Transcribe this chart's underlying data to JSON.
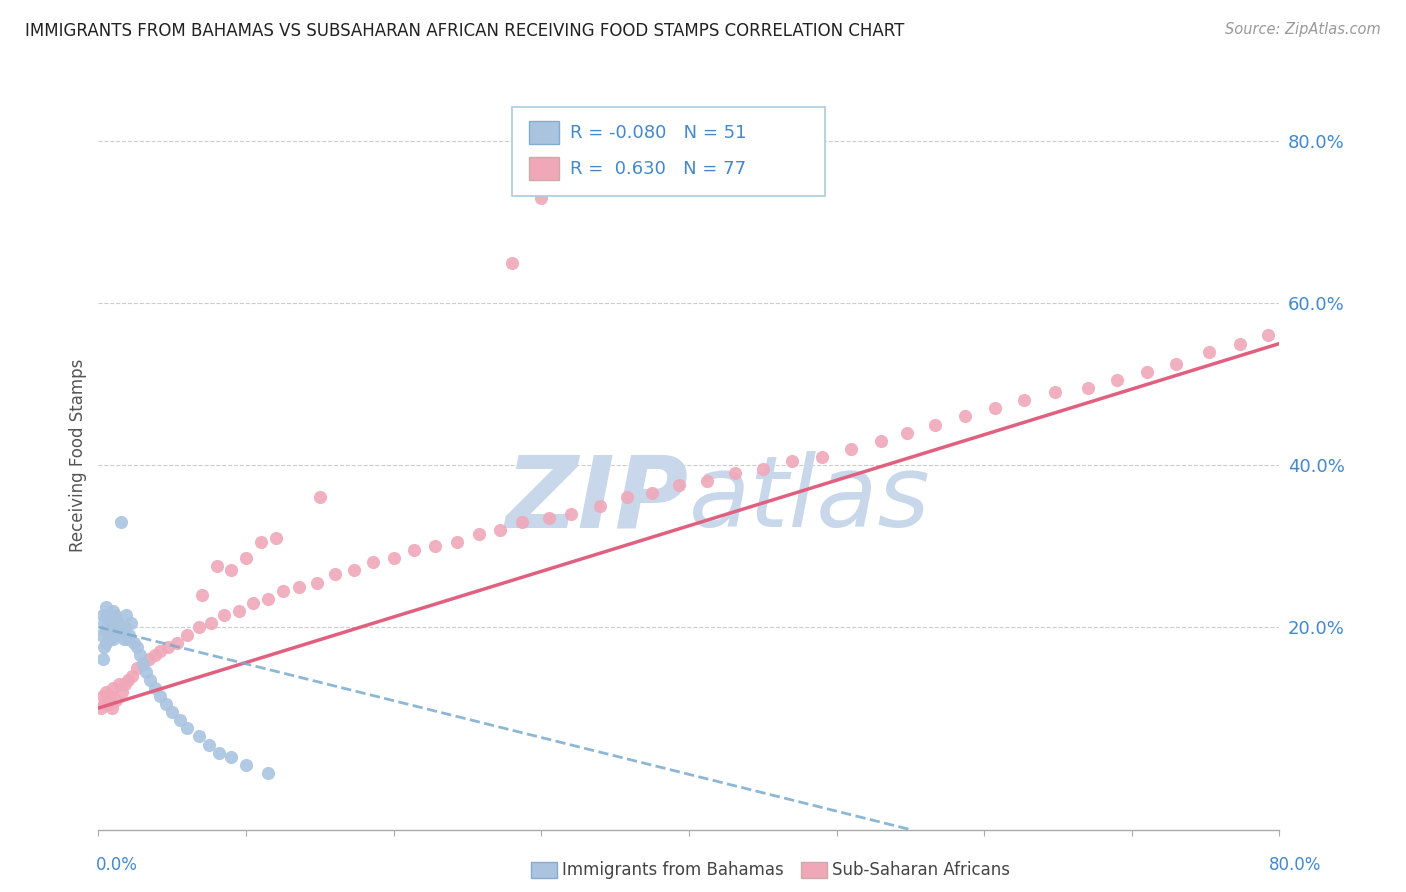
{
  "title": "IMMIGRANTS FROM BAHAMAS VS SUBSAHARAN AFRICAN RECEIVING FOOD STAMPS CORRELATION CHART",
  "source": "Source: ZipAtlas.com",
  "ylabel": "Receiving Food Stamps",
  "color_bahamas": "#aac4e0",
  "color_africa": "#f0a8b8",
  "color_trend_bahamas": "#7aabcc",
  "color_trend_africa": "#e06080",
  "watermark_zip": "#c8d8ea",
  "watermark_atlas": "#c8d8ea",
  "legend_R1": "-0.080",
  "legend_N1": "51",
  "legend_R2": " 0.630",
  "legend_N2": "77",
  "color_text_blue": "#4488cc",
  "xlim": [
    0.0,
    0.8
  ],
  "ylim": [
    -0.05,
    0.875
  ],
  "ytick_values": [
    0.2,
    0.4,
    0.6,
    0.8
  ],
  "ytick_labels": [
    "20.0%",
    "40.0%",
    "60.0%",
    "80.0%"
  ],
  "grid_color": "#cccccc",
  "spine_color": "#aaaaaa",
  "bahamas_x": [
    0.002,
    0.003,
    0.003,
    0.004,
    0.004,
    0.005,
    0.005,
    0.005,
    0.006,
    0.006,
    0.007,
    0.007,
    0.008,
    0.008,
    0.009,
    0.009,
    0.01,
    0.01,
    0.01,
    0.011,
    0.011,
    0.012,
    0.012,
    0.013,
    0.014,
    0.015,
    0.016,
    0.017,
    0.018,
    0.019,
    0.02,
    0.021,
    0.022,
    0.024,
    0.026,
    0.028,
    0.03,
    0.032,
    0.035,
    0.038,
    0.042,
    0.046,
    0.05,
    0.055,
    0.06,
    0.068,
    0.075,
    0.082,
    0.09,
    0.1,
    0.115
  ],
  "bahamas_y": [
    0.19,
    0.215,
    0.16,
    0.205,
    0.175,
    0.195,
    0.225,
    0.18,
    0.2,
    0.215,
    0.21,
    0.19,
    0.205,
    0.185,
    0.2,
    0.195,
    0.21,
    0.22,
    0.185,
    0.2,
    0.215,
    0.195,
    0.21,
    0.205,
    0.19,
    0.33,
    0.195,
    0.185,
    0.2,
    0.215,
    0.185,
    0.19,
    0.205,
    0.18,
    0.175,
    0.165,
    0.155,
    0.145,
    0.135,
    0.125,
    0.115,
    0.105,
    0.095,
    0.085,
    0.075,
    0.065,
    0.055,
    0.045,
    0.04,
    0.03,
    0.02
  ],
  "africa_x": [
    0.002,
    0.003,
    0.004,
    0.005,
    0.006,
    0.007,
    0.008,
    0.009,
    0.01,
    0.012,
    0.014,
    0.016,
    0.018,
    0.02,
    0.023,
    0.026,
    0.03,
    0.034,
    0.038,
    0.042,
    0.047,
    0.053,
    0.06,
    0.068,
    0.076,
    0.085,
    0.095,
    0.105,
    0.115,
    0.125,
    0.136,
    0.148,
    0.16,
    0.173,
    0.186,
    0.2,
    0.214,
    0.228,
    0.243,
    0.258,
    0.272,
    0.287,
    0.305,
    0.32,
    0.34,
    0.358,
    0.375,
    0.393,
    0.412,
    0.431,
    0.45,
    0.47,
    0.49,
    0.51,
    0.53,
    0.548,
    0.567,
    0.587,
    0.607,
    0.627,
    0.648,
    0.67,
    0.69,
    0.71,
    0.73,
    0.752,
    0.773,
    0.792,
    0.3,
    0.28,
    0.1,
    0.15,
    0.12,
    0.09,
    0.07,
    0.08,
    0.11
  ],
  "africa_y": [
    0.1,
    0.115,
    0.105,
    0.12,
    0.11,
    0.105,
    0.115,
    0.1,
    0.125,
    0.11,
    0.13,
    0.12,
    0.13,
    0.135,
    0.14,
    0.15,
    0.155,
    0.16,
    0.165,
    0.17,
    0.175,
    0.18,
    0.19,
    0.2,
    0.205,
    0.215,
    0.22,
    0.23,
    0.235,
    0.245,
    0.25,
    0.255,
    0.265,
    0.27,
    0.28,
    0.285,
    0.295,
    0.3,
    0.305,
    0.315,
    0.32,
    0.33,
    0.335,
    0.34,
    0.35,
    0.36,
    0.365,
    0.375,
    0.38,
    0.39,
    0.395,
    0.405,
    0.41,
    0.42,
    0.43,
    0.44,
    0.45,
    0.46,
    0.47,
    0.48,
    0.49,
    0.495,
    0.505,
    0.515,
    0.525,
    0.54,
    0.55,
    0.56,
    0.73,
    0.65,
    0.285,
    0.36,
    0.31,
    0.27,
    0.24,
    0.275,
    0.305
  ]
}
